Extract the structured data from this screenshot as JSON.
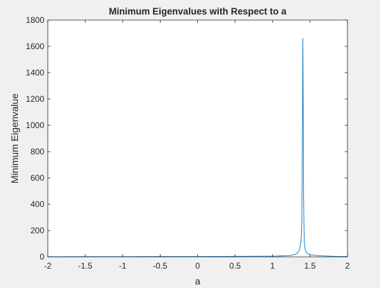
{
  "chart_data": {
    "type": "line",
    "title": "Minimum Eigenvalues with Respect to a",
    "xlabel": "a",
    "ylabel": "Minimum Eigenvalue",
    "xlim": [
      -2,
      2
    ],
    "ylim": [
      0,
      1800
    ],
    "xticks": [
      -2,
      -1.5,
      -1,
      -0.5,
      0,
      0.5,
      1,
      1.5,
      2
    ],
    "xtick_labels": [
      "-2",
      "-1.5",
      "-1",
      "-0.5",
      "0",
      "0.5",
      "1",
      "1.5",
      "2"
    ],
    "yticks": [
      0,
      200,
      400,
      600,
      800,
      1000,
      1200,
      1400,
      1600,
      1800
    ],
    "ytick_labels": [
      "0",
      "200",
      "400",
      "600",
      "800",
      "1000",
      "1200",
      "1400",
      "1600",
      "1800"
    ],
    "grid": false,
    "colors": {
      "line": "#0072BD",
      "axes_bg": "#ffffff",
      "figure_bg": "#f0f0f0"
    },
    "series": [
      {
        "x": [
          -2,
          -1.5,
          -1,
          -0.5,
          0,
          0.5,
          1,
          1.1,
          1.2,
          1.25,
          1.3,
          1.33,
          1.36,
          1.38,
          1.39,
          1.4,
          1.405,
          1.41,
          1.415,
          1.42,
          1.425,
          1.43,
          1.44,
          1.46,
          1.5,
          1.6,
          1.7,
          1.8,
          1.9,
          2
        ],
        "y": [
          1.2,
          1.3,
          1.5,
          2,
          2.5,
          3.5,
          5,
          6.5,
          9,
          12,
          18,
          28,
          55,
          120,
          260,
          1000,
          1660,
          1000,
          450,
          200,
          110,
          75,
          45,
          28,
          17,
          9,
          6,
          4,
          3,
          2.5
        ]
      }
    ]
  }
}
